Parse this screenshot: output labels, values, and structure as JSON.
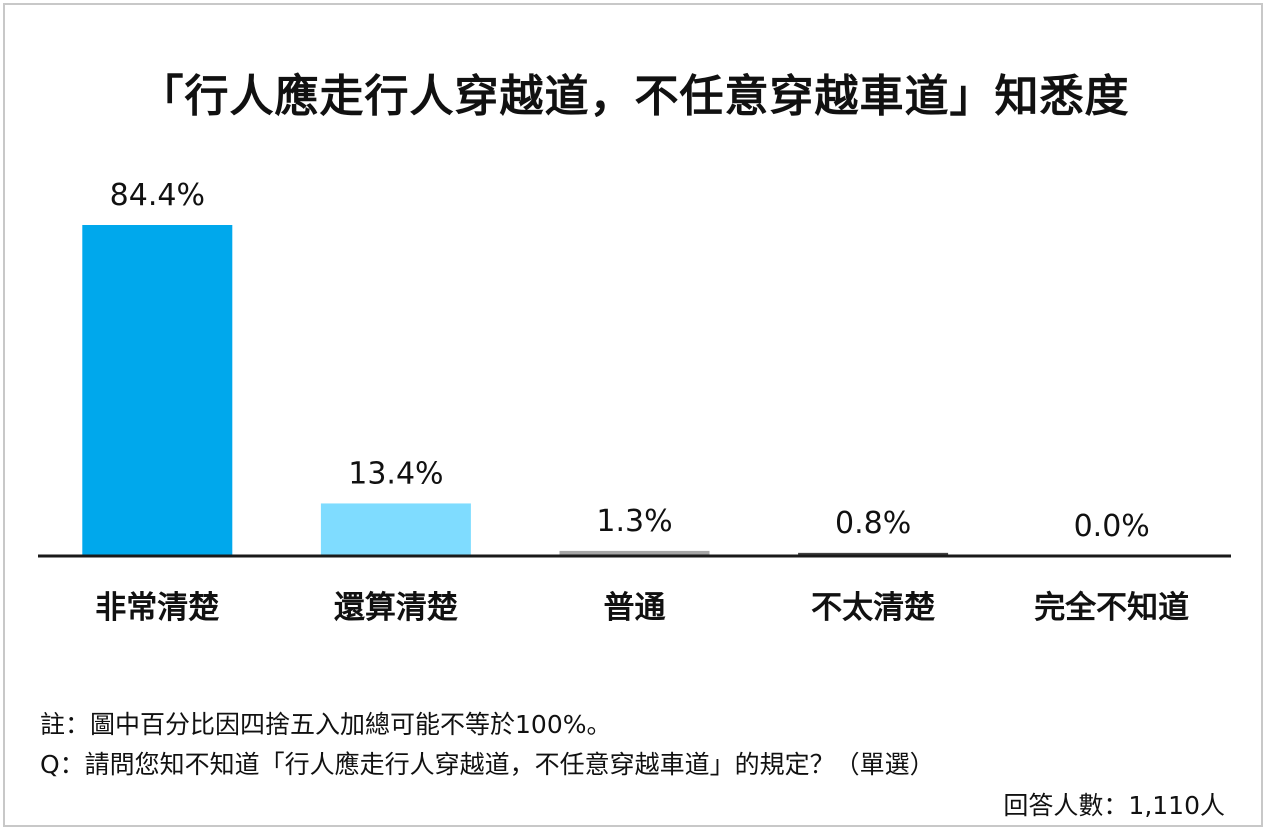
{
  "chart_data": {
    "type": "bar",
    "title": "「行人應走行人穿越道，不任意穿越車道」知悉度",
    "categories": [
      "非常清楚",
      "還算清楚",
      "普通",
      "不太清楚",
      "完全不知道"
    ],
    "values": [
      84.4,
      13.4,
      1.3,
      0.8,
      0.0
    ],
    "value_labels": [
      "84.4%",
      "13.4%",
      "1.3%",
      "0.8%",
      "0.0%"
    ],
    "colors": [
      "#00a8ec",
      "#7fdcff",
      "#a6a6a6",
      "#404040",
      "#404040"
    ],
    "ylim": [
      0,
      84.4
    ],
    "grid": false,
    "legend": "none"
  },
  "notes": {
    "rounding": "註：圖中百分比因四捨五入加總可能不等於100%。",
    "question": "Q：請問您知不知道「行人應走行人穿越道，不任意穿越車道」的規定？（單選）",
    "respondents": "回答人數：1,110人"
  }
}
